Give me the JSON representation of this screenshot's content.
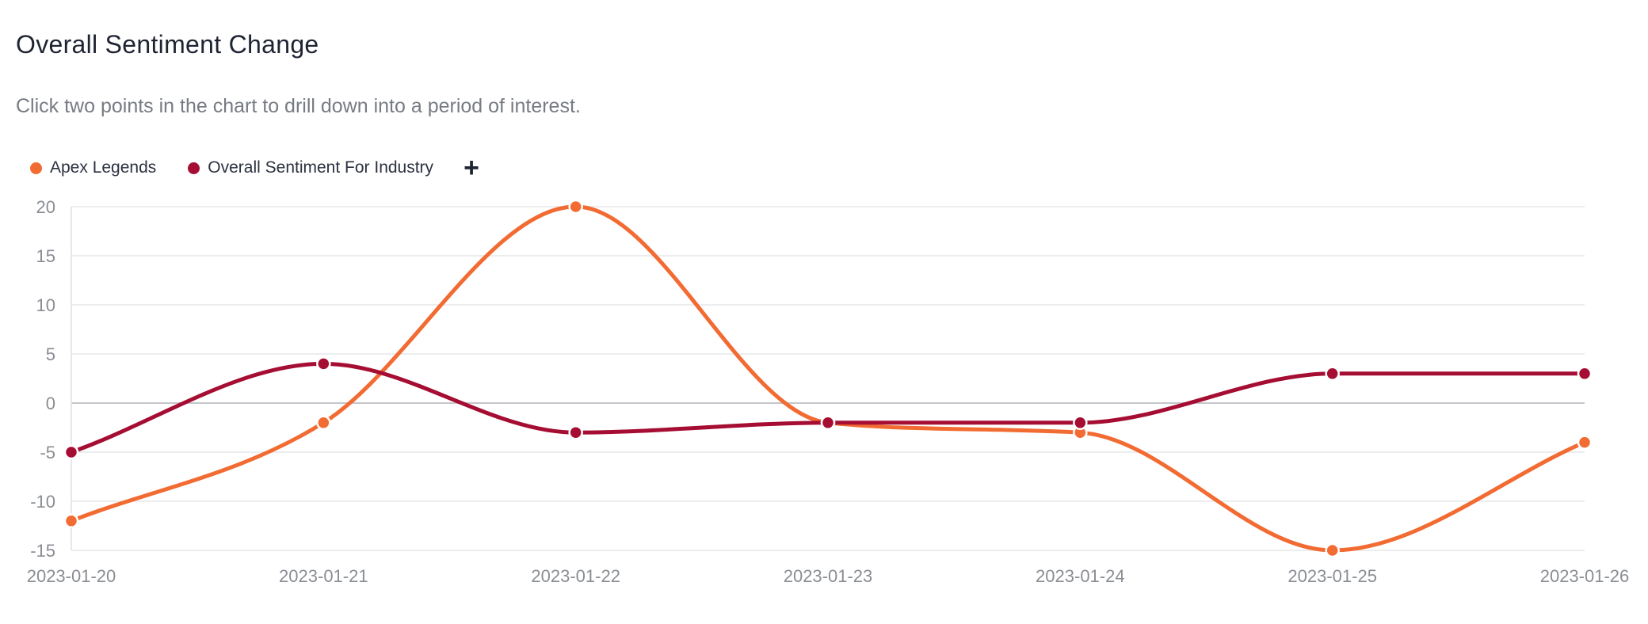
{
  "header": {
    "title": "Overall Sentiment Change",
    "subtitle": "Click two points in the chart to drill down into a period of interest."
  },
  "legend": {
    "add_label": "+"
  },
  "chart_data": {
    "type": "line",
    "title": "Overall Sentiment Change",
    "x": [
      "2023-01-20",
      "2023-01-21",
      "2023-01-22",
      "2023-01-23",
      "2023-01-24",
      "2023-01-25",
      "2023-01-26"
    ],
    "series": [
      {
        "name": "Apex Legends",
        "color": "#f26b32",
        "values": [
          -12,
          -2,
          20,
          -2,
          -3,
          -15,
          -4
        ]
      },
      {
        "name": "Overall Sentiment For Industry",
        "color": "#a50d33",
        "values": [
          -5,
          4,
          -3,
          -2,
          -2,
          3,
          3
        ]
      }
    ],
    "yticks": [
      20,
      15,
      10,
      5,
      0,
      -5,
      -10,
      -15
    ],
    "ylim": [
      -15,
      20
    ],
    "grid": true,
    "smooth": true,
    "legend_position": "top-left"
  }
}
